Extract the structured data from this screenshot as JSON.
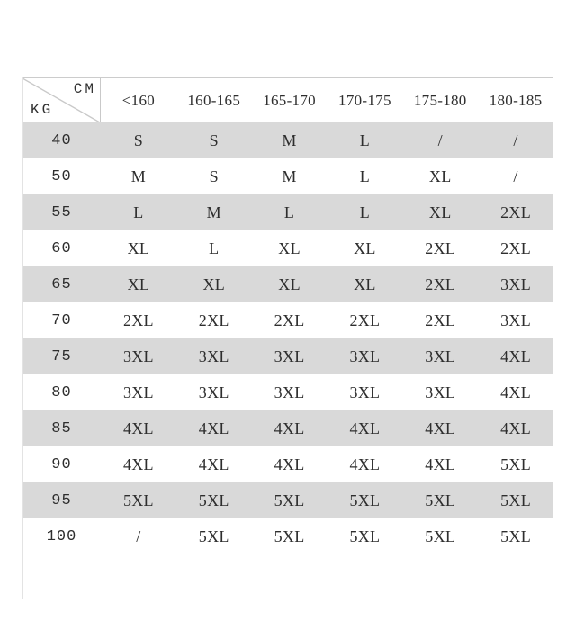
{
  "style": {
    "background": "#ffffff",
    "stripe_color": "#d9d9d9",
    "text_color": "#2e2e2e",
    "border_color": "#c9c9c9"
  },
  "chart_data": {
    "type": "table",
    "corner_top_label": "CM",
    "corner_bottom_label": "KG",
    "columns": [
      "<160",
      "160-165",
      "165-170",
      "170-175",
      "175-180",
      "180-185"
    ],
    "row_labels": [
      "40",
      "50",
      "55",
      "60",
      "65",
      "70",
      "75",
      "80",
      "85",
      "90",
      "95",
      "100"
    ],
    "cells": [
      [
        "S",
        "S",
        "M",
        "L",
        "/",
        "/"
      ],
      [
        "M",
        "S",
        "M",
        "L",
        "XL",
        "/"
      ],
      [
        "L",
        "M",
        "L",
        "L",
        "XL",
        "2XL"
      ],
      [
        "XL",
        "L",
        "XL",
        "XL",
        "2XL",
        "2XL"
      ],
      [
        "XL",
        "XL",
        "XL",
        "XL",
        "2XL",
        "3XL"
      ],
      [
        "2XL",
        "2XL",
        "2XL",
        "2XL",
        "2XL",
        "3XL"
      ],
      [
        "3XL",
        "3XL",
        "3XL",
        "3XL",
        "3XL",
        "4XL"
      ],
      [
        "3XL",
        "3XL",
        "3XL",
        "3XL",
        "3XL",
        "4XL"
      ],
      [
        "4XL",
        "4XL",
        "4XL",
        "4XL",
        "4XL",
        "4XL"
      ],
      [
        "4XL",
        "4XL",
        "4XL",
        "4XL",
        "4XL",
        "5XL"
      ],
      [
        "5XL",
        "5XL",
        "5XL",
        "5XL",
        "5XL",
        "5XL"
      ],
      [
        "/",
        "5XL",
        "5XL",
        "5XL",
        "5XL",
        "5XL"
      ]
    ],
    "layout": {
      "striped_rows": "alternate starting with first data row (40)",
      "legend_position": "none",
      "grid": "off"
    }
  }
}
